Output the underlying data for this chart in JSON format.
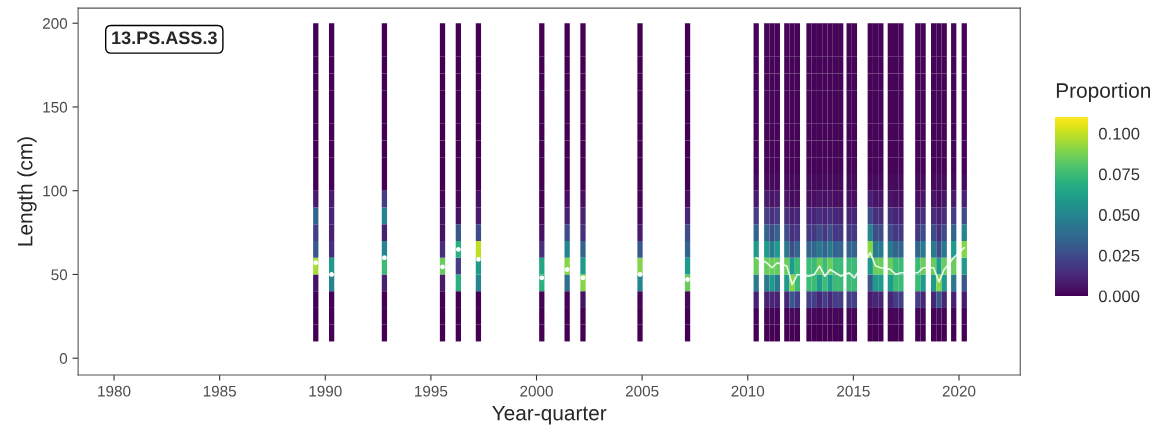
{
  "chart_data": {
    "type": "heatmap",
    "xlabel": "Year-quarter",
    "ylabel": "Length (cm)",
    "clabel": "Proportion",
    "annotations": [
      "13.PS.ASS.3"
    ],
    "x": [
      1989.3,
      1989.55,
      1989.8,
      1990.05,
      1990.3,
      1990.55,
      1992.55,
      1992.8,
      1993.05,
      1995.3,
      1995.55,
      1995.8,
      1996.05,
      1996.3,
      1996.55,
      1997.0,
      1997.25,
      1997.5,
      2000.0,
      2000.25,
      2000.5,
      2001.2,
      2001.45,
      2001.7,
      2001.95,
      2002.2,
      2002.45,
      2004.65,
      2004.9,
      2005.15,
      2006.9,
      2007.15,
      2007.4,
      2010.15,
      2010.4,
      2010.65,
      2010.9,
      2011.15,
      2011.4,
      2011.85,
      2012.1,
      2012.35,
      2012.9,
      2013.15,
      2013.4,
      2013.65,
      2013.9,
      2014.15,
      2014.4,
      2014.8,
      2015.05,
      2015.3,
      2015.55,
      2015.8,
      2016.05,
      2016.3,
      2016.75,
      2017.0,
      2017.25,
      2017.5,
      2017.8,
      2018.05,
      2018.3,
      2018.8,
      2019.05,
      2019.3,
      2019.75,
      2020.25
    ],
    "y": [
      195,
      185,
      175,
      165,
      155,
      145,
      135,
      125,
      115,
      105,
      95,
      85,
      75,
      65,
      55,
      45,
      35,
      25,
      15
    ],
    "cells": [
      [
        null,
        0,
        null,
        null,
        0,
        null,
        null,
        0,
        null,
        null,
        0,
        null,
        null,
        0,
        null,
        null,
        0,
        null,
        null,
        0,
        null,
        null,
        0,
        null,
        null,
        0,
        null,
        null,
        0,
        null,
        null,
        0,
        null,
        null,
        0.001,
        null,
        0.001,
        0.001,
        0.001,
        0.001,
        0.001,
        0.001,
        0.001,
        0.001,
        0.001,
        0.001,
        0.001,
        0.001,
        0.001,
        0.001,
        0.001,
        null,
        null,
        0.001,
        0.001,
        0.001,
        0.001,
        0.001,
        0.001,
        null,
        null,
        0.001,
        0.001,
        0.001,
        0.001,
        0.001,
        0.001,
        0.001
      ],
      [
        null,
        0,
        null,
        null,
        0,
        null,
        null,
        0,
        null,
        null,
        0,
        null,
        null,
        0,
        null,
        null,
        0,
        null,
        null,
        0,
        null,
        null,
        0,
        null,
        null,
        0,
        null,
        null,
        0,
        null,
        null,
        0,
        null,
        null,
        0.001,
        null,
        0.001,
        0.001,
        0.001,
        0.001,
        0.001,
        0.001,
        0.001,
        0.001,
        0.001,
        0.001,
        0.001,
        0.001,
        0.001,
        0.001,
        0.001,
        null,
        null,
        0.001,
        0.001,
        0.001,
        0.001,
        0.001,
        0.001,
        null,
        null,
        0.001,
        0.001,
        0.001,
        0.001,
        0.001,
        0.001,
        0.001
      ],
      [
        null,
        0,
        null,
        null,
        0,
        null,
        null,
        0,
        null,
        null,
        0,
        null,
        null,
        0,
        null,
        null,
        0,
        null,
        null,
        0,
        null,
        null,
        0,
        null,
        null,
        0,
        null,
        null,
        0,
        null,
        null,
        0,
        null,
        null,
        0.001,
        null,
        0.001,
        0.001,
        0.001,
        0.001,
        0.001,
        0.001,
        0.001,
        0.001,
        0.001,
        0.001,
        0.001,
        0.001,
        0.001,
        0.001,
        0.001,
        null,
        null,
        0.001,
        0.001,
        0.001,
        0.001,
        0.001,
        0.001,
        null,
        null,
        0.001,
        0.001,
        0.001,
        0.001,
        0.001,
        0.001,
        0.001
      ],
      [
        null,
        0,
        null,
        null,
        0,
        null,
        null,
        0,
        null,
        null,
        0,
        null,
        null,
        0,
        null,
        null,
        0,
        null,
        null,
        0,
        null,
        null,
        0,
        null,
        null,
        0,
        null,
        null,
        0,
        null,
        null,
        0,
        null,
        null,
        0.001,
        null,
        0.001,
        0.001,
        0.001,
        0.001,
        0.001,
        0.001,
        0.001,
        0.001,
        0.001,
        0.001,
        0.001,
        0.001,
        0.001,
        0.001,
        0.001,
        null,
        null,
        0.001,
        0.001,
        0.001,
        0.001,
        0.001,
        0.001,
        null,
        null,
        0.001,
        0.001,
        0.001,
        0.001,
        0.001,
        0.001,
        0.001
      ],
      [
        null,
        0,
        null,
        null,
        0,
        null,
        null,
        0,
        null,
        null,
        0,
        null,
        null,
        0,
        null,
        null,
        0,
        null,
        null,
        0,
        null,
        null,
        0,
        null,
        null,
        0,
        null,
        null,
        0,
        null,
        null,
        0,
        null,
        null,
        0.001,
        null,
        0.001,
        0.001,
        0.001,
        0.001,
        0.001,
        0.001,
        0.001,
        0.001,
        0.001,
        0.001,
        0.001,
        0.001,
        0.001,
        0.001,
        0.001,
        null,
        null,
        0.001,
        0.001,
        0.001,
        0.001,
        0.001,
        0.001,
        null,
        null,
        0.001,
        0.001,
        0.001,
        0.001,
        0.001,
        0.001,
        0.001
      ],
      [
        null,
        0,
        null,
        null,
        0,
        null,
        null,
        0,
        null,
        null,
        0,
        null,
        null,
        0,
        null,
        null,
        0,
        null,
        null,
        0,
        null,
        null,
        0,
        null,
        null,
        0,
        null,
        null,
        0,
        null,
        null,
        0,
        null,
        null,
        0.001,
        null,
        0.001,
        0.001,
        0.001,
        0.001,
        0.001,
        0.001,
        0.001,
        0.001,
        0.001,
        0.001,
        0.001,
        0.001,
        0.001,
        0.001,
        0.001,
        null,
        null,
        0.001,
        0.001,
        0.001,
        0.001,
        0.001,
        0.001,
        null,
        null,
        0.001,
        0.001,
        0.001,
        0.001,
        0.001,
        0.001,
        0.001
      ],
      [
        null,
        0,
        null,
        null,
        0,
        null,
        null,
        0,
        null,
        null,
        0,
        null,
        null,
        0,
        null,
        null,
        0,
        null,
        null,
        0,
        null,
        null,
        0,
        null,
        null,
        0,
        null,
        null,
        0,
        null,
        null,
        0,
        null,
        null,
        0.001,
        null,
        0.001,
        0.001,
        0.001,
        0.001,
        0.001,
        0.001,
        0.001,
        0.001,
        0.001,
        0.001,
        0.001,
        0.001,
        0.001,
        0.001,
        0.001,
        null,
        null,
        0.001,
        0.001,
        0.001,
        0.001,
        0.001,
        0.001,
        null,
        null,
        0.001,
        0.001,
        0.001,
        0.001,
        0.001,
        0.001,
        0.001
      ],
      [
        null,
        0,
        null,
        null,
        0,
        null,
        null,
        0,
        null,
        null,
        0,
        null,
        null,
        0,
        null,
        null,
        0,
        null,
        null,
        0,
        null,
        null,
        0,
        null,
        null,
        0,
        null,
        null,
        0,
        null,
        null,
        0,
        null,
        null,
        0.001,
        null,
        0.001,
        0.001,
        0.001,
        0.001,
        0.001,
        0.001,
        0.001,
        0.001,
        0.001,
        0.001,
        0.001,
        0.001,
        0.001,
        0.001,
        0.001,
        null,
        null,
        0.001,
        0.001,
        0.001,
        0.001,
        0.001,
        0.001,
        null,
        null,
        0.001,
        0.001,
        0.001,
        0.001,
        0.001,
        0.001,
        0.001
      ],
      [
        null,
        0,
        null,
        null,
        0,
        null,
        null,
        0,
        null,
        null,
        0,
        null,
        null,
        0,
        null,
        null,
        0,
        null,
        null,
        0,
        null,
        null,
        0,
        null,
        null,
        0,
        null,
        null,
        0,
        null,
        null,
        0,
        null,
        null,
        0.001,
        null,
        0.001,
        0.001,
        0.001,
        0.001,
        0.001,
        0.001,
        0.001,
        0.001,
        0.001,
        0.001,
        0.001,
        0.001,
        0.001,
        0.001,
        0.001,
        null,
        null,
        0.001,
        0.001,
        0.001,
        0.001,
        0.001,
        0.001,
        null,
        null,
        0.001,
        0.001,
        0.001,
        0.001,
        0.001,
        0.001,
        0.001
      ],
      [
        null,
        0,
        null,
        null,
        0,
        null,
        null,
        0,
        null,
        null,
        0,
        null,
        null,
        0,
        null,
        null,
        0,
        null,
        null,
        0,
        null,
        null,
        0,
        null,
        null,
        0,
        null,
        null,
        0,
        null,
        null,
        0,
        null,
        null,
        0.003,
        null,
        0.003,
        0.003,
        0.003,
        0.003,
        0.003,
        0.003,
        0.003,
        0.003,
        0.003,
        0.003,
        0.003,
        0.003,
        0.003,
        0.003,
        0.003,
        null,
        null,
        0.003,
        0.003,
        0.003,
        0.003,
        0.003,
        0.003,
        null,
        null,
        0.003,
        0.003,
        0.003,
        0.003,
        0.003,
        0.003,
        0.003
      ],
      [
        null,
        0.008,
        null,
        null,
        0.008,
        null,
        null,
        0.02,
        null,
        null,
        0.002,
        null,
        null,
        0.002,
        null,
        null,
        0.005,
        null,
        null,
        0,
        null,
        null,
        0.004,
        null,
        null,
        0.004,
        null,
        null,
        0.001,
        null,
        null,
        0.004,
        null,
        null,
        0.008,
        null,
        0.008,
        0.006,
        0.008,
        0.006,
        0.003,
        0.004,
        0.004,
        0.004,
        0.006,
        0.004,
        0.006,
        0.004,
        0.004,
        0.004,
        0.004,
        null,
        null,
        0.01,
        0.006,
        0.006,
        0.006,
        0.004,
        0.004,
        null,
        null,
        0.004,
        0.006,
        0.006,
        0.003,
        0.006,
        0.008,
        0.01
      ],
      [
        null,
        0.035,
        null,
        null,
        0.012,
        null,
        null,
        0.05,
        null,
        null,
        0.005,
        null,
        null,
        0.005,
        null,
        null,
        0.008,
        null,
        null,
        0.002,
        null,
        null,
        0.01,
        null,
        null,
        0.01,
        null,
        null,
        0.003,
        null,
        null,
        0.012,
        null,
        null,
        0.02,
        null,
        0.02,
        0.015,
        0.02,
        0.015,
        0.01,
        0.012,
        0.012,
        0.012,
        0.015,
        0.012,
        0.015,
        0.012,
        0.012,
        0.012,
        0.012,
        null,
        null,
        0.025,
        0.015,
        0.015,
        0.015,
        0.012,
        0.012,
        null,
        null,
        0.012,
        0.015,
        0.015,
        0.01,
        0.015,
        0.02,
        0.025
      ],
      [
        null,
        0.02,
        null,
        null,
        0.01,
        null,
        null,
        0.01,
        null,
        null,
        0.005,
        null,
        null,
        0.03,
        null,
        null,
        0.025,
        null,
        null,
        0.005,
        null,
        null,
        0.025,
        null,
        null,
        0.015,
        null,
        null,
        0.008,
        null,
        null,
        0.025,
        null,
        null,
        0.035,
        null,
        0.035,
        0.025,
        0.035,
        0.025,
        0.015,
        0.018,
        0.018,
        0.018,
        0.025,
        0.018,
        0.025,
        0.018,
        0.018,
        0.018,
        0.018,
        null,
        null,
        0.05,
        0.025,
        0.025,
        0.025,
        0.018,
        0.018,
        null,
        null,
        0.018,
        0.025,
        0.025,
        0.015,
        0.025,
        0.035,
        0.05
      ],
      [
        null,
        0.03,
        null,
        null,
        0.015,
        null,
        null,
        0.05,
        null,
        null,
        0.015,
        null,
        null,
        0.07,
        null,
        null,
        0.1,
        null,
        null,
        0.015,
        null,
        null,
        0.05,
        null,
        null,
        0.035,
        null,
        null,
        0.03,
        null,
        null,
        0.035,
        null,
        null,
        0.06,
        null,
        0.06,
        0.045,
        0.06,
        0.045,
        0.025,
        0.035,
        0.035,
        0.035,
        0.045,
        0.035,
        0.045,
        0.035,
        0.035,
        0.035,
        0.035,
        null,
        null,
        0.09,
        0.045,
        0.045,
        0.045,
        0.035,
        0.035,
        null,
        null,
        0.035,
        0.045,
        0.045,
        0.025,
        0.045,
        0.06,
        0.09
      ],
      [
        null,
        0.095,
        null,
        null,
        0.06,
        null,
        null,
        0.075,
        null,
        null,
        0.085,
        null,
        null,
        0.02,
        null,
        null,
        0.06,
        null,
        null,
        0.065,
        null,
        null,
        0.09,
        null,
        null,
        0.06,
        null,
        null,
        0.09,
        null,
        null,
        0.06,
        null,
        null,
        0.085,
        null,
        0.085,
        0.085,
        0.085,
        0.085,
        0.06,
        0.075,
        0.075,
        0.075,
        0.085,
        0.075,
        0.085,
        0.075,
        0.075,
        0.075,
        0.075,
        null,
        null,
        0.06,
        0.085,
        0.085,
        0.085,
        0.075,
        0.075,
        null,
        null,
        0.075,
        0.085,
        0.085,
        0.06,
        0.085,
        0.085,
        0.06
      ],
      [
        null,
        0.005,
        null,
        null,
        0.05,
        null,
        null,
        0.01,
        null,
        null,
        0.008,
        null,
        null,
        0.07,
        null,
        null,
        0.05,
        null,
        null,
        0.07,
        null,
        null,
        0.04,
        null,
        null,
        0.09,
        null,
        null,
        0.05,
        null,
        null,
        0.085,
        null,
        null,
        0.045,
        null,
        0.045,
        0.06,
        0.045,
        0.06,
        0.09,
        0.075,
        0.075,
        0.075,
        0.06,
        0.075,
        0.06,
        0.075,
        0.075,
        0.075,
        0.075,
        null,
        null,
        0.03,
        0.06,
        0.06,
        0.06,
        0.075,
        0.075,
        null,
        null,
        0.075,
        0.06,
        0.06,
        0.09,
        0.06,
        0.045,
        0.03
      ],
      [
        null,
        0,
        null,
        null,
        0,
        null,
        null,
        0,
        null,
        null,
        0,
        null,
        null,
        0,
        null,
        null,
        0,
        null,
        null,
        0.001,
        null,
        null,
        0.001,
        null,
        null,
        0.005,
        null,
        null,
        0.001,
        null,
        null,
        0.003,
        null,
        null,
        0.01,
        null,
        0.01,
        0.012,
        0.01,
        0.012,
        0.03,
        0.02,
        0.02,
        0.02,
        0.012,
        0.02,
        0.012,
        0.02,
        0.02,
        0.02,
        0.02,
        null,
        null,
        0.008,
        0.012,
        0.012,
        0.012,
        0.02,
        0.02,
        null,
        null,
        0.02,
        0.012,
        0.012,
        0.03,
        0.012,
        0.01,
        0.008
      ],
      [
        null,
        0,
        null,
        null,
        0,
        null,
        null,
        0,
        null,
        null,
        0,
        null,
        null,
        0,
        null,
        null,
        0,
        null,
        null,
        0,
        null,
        null,
        0,
        null,
        null,
        0,
        null,
        null,
        0,
        null,
        null,
        0,
        null,
        null,
        0.001,
        null,
        0.001,
        0.001,
        0.001,
        0.001,
        0.003,
        0.002,
        0.002,
        0.002,
        0.001,
        0.002,
        0.001,
        0.002,
        0.002,
        0.002,
        0.002,
        null,
        null,
        0.001,
        0.001,
        0.001,
        0.001,
        0.002,
        0.002,
        null,
        null,
        0.002,
        0.001,
        0.001,
        0.003,
        0.001,
        0.001,
        0.001
      ],
      [
        null,
        0,
        null,
        null,
        0,
        null,
        null,
        0,
        null,
        null,
        0,
        null,
        null,
        0,
        null,
        null,
        0,
        null,
        null,
        0,
        null,
        null,
        0,
        null,
        null,
        0,
        null,
        null,
        0,
        null,
        null,
        0,
        null,
        null,
        0,
        null,
        0,
        0,
        0,
        0,
        0,
        0,
        0,
        0,
        0,
        0,
        0,
        0,
        0,
        0,
        0,
        null,
        null,
        0,
        0,
        0,
        0,
        0,
        0,
        null,
        null,
        0,
        0,
        0,
        0,
        0,
        0,
        0
      ]
    ],
    "series": [
      {
        "type": "line",
        "color": "#ffffff",
        "x": [
          2010.4,
          2010.9,
          2011.15,
          2011.4,
          2011.85,
          2012.1,
          2012.35,
          2012.9,
          2013.15,
          2013.4,
          2013.65,
          2013.9,
          2014.15,
          2014.4,
          2014.8,
          2015.05,
          2015.8,
          2016.05,
          2016.3,
          2016.75,
          2017.0,
          2017.25,
          2018.05,
          2018.3,
          2018.8,
          2019.05,
          2019.3,
          2019.75,
          2020.25
        ],
        "values": [
          60,
          57,
          54,
          57,
          55,
          44,
          50,
          49,
          50,
          55,
          49,
          53,
          51,
          49,
          51,
          48,
          63,
          55,
          54,
          53,
          50,
          51,
          51,
          54,
          54,
          45.5,
          53,
          60,
          66
        ]
      },
      {
        "type": "scatter",
        "color": "#ffffff",
        "x": [
          1989.55,
          1990.3,
          1992.8,
          1995.55,
          1996.3,
          1997.25,
          2000.25,
          2001.45,
          2002.2,
          2004.9,
          2007.15
        ],
        "values": [
          57,
          50,
          60,
          54.5,
          65,
          59,
          48,
          53,
          48,
          50,
          47
        ]
      }
    ],
    "xlim": [
      1978.3,
      2022.9
    ],
    "ylim": [
      -10,
      209
    ],
    "xticks": [
      1980,
      1985,
      1990,
      1995,
      2000,
      2005,
      2010,
      2015,
      2020
    ],
    "yticks": [
      0,
      50,
      100,
      150,
      200
    ],
    "clim": [
      0,
      0.11
    ],
    "cticks": [
      {
        "value": 0,
        "label": "0.000"
      },
      {
        "value": 0.025,
        "label": "0.025"
      },
      {
        "value": 0.05,
        "label": "0.050"
      },
      {
        "value": 0.075,
        "label": "0.075"
      },
      {
        "value": 0.1,
        "label": "0.100"
      }
    ]
  }
}
